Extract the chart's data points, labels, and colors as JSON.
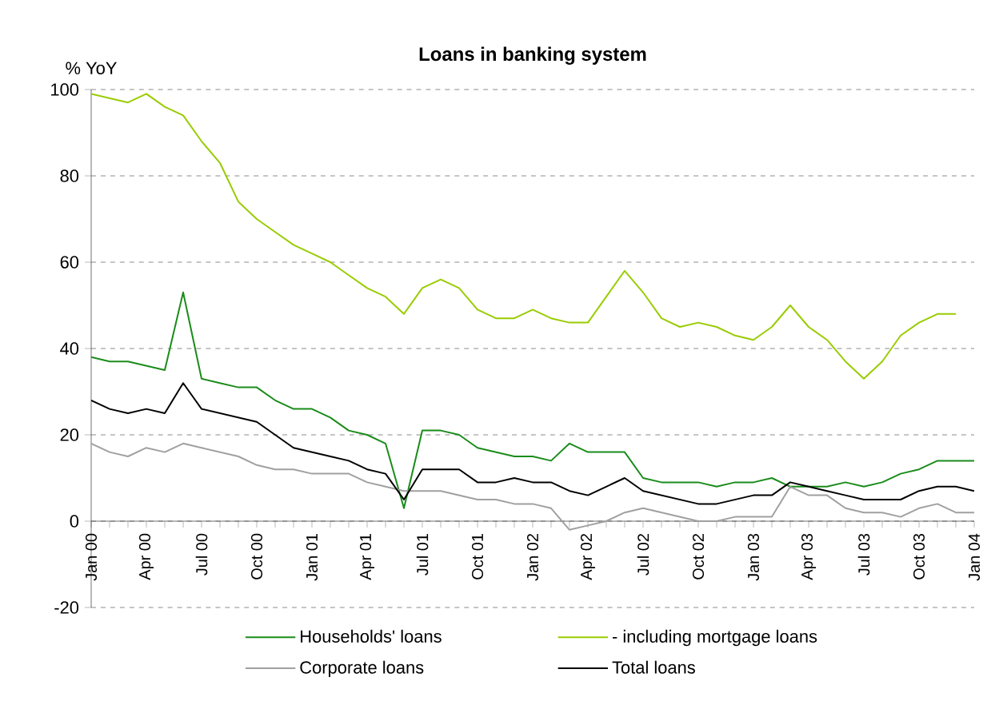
{
  "chart_data": {
    "type": "line",
    "title": "Loans in banking system",
    "ylabel": "% YoY",
    "x": [
      "2000-01",
      "2000-02",
      "2000-03",
      "2000-04",
      "2000-05",
      "2000-06",
      "2000-07",
      "2000-08",
      "2000-09",
      "2000-10",
      "2000-11",
      "2000-12",
      "2001-01",
      "2001-02",
      "2001-03",
      "2001-04",
      "2001-05",
      "2001-06",
      "2001-07",
      "2001-08",
      "2001-09",
      "2001-10",
      "2001-11",
      "2001-12",
      "2002-01",
      "2002-02",
      "2002-03",
      "2002-04",
      "2002-05",
      "2002-06",
      "2002-07",
      "2002-08",
      "2002-09",
      "2002-10",
      "2002-11",
      "2002-12",
      "2003-01",
      "2003-02",
      "2003-03",
      "2003-04",
      "2003-05",
      "2003-06",
      "2003-07",
      "2003-08",
      "2003-09",
      "2003-10",
      "2003-11",
      "2003-12",
      "2004-01"
    ],
    "series": [
      {
        "name": "Households' loans",
        "color": "#1a8c1a",
        "values": [
          38,
          37,
          37,
          36,
          35,
          53,
          33,
          32,
          31,
          31,
          28,
          26,
          26,
          24,
          21,
          20,
          18,
          3,
          21,
          21,
          20,
          17,
          16,
          15,
          15,
          14,
          18,
          16,
          16,
          16,
          10,
          9,
          9,
          9,
          8,
          9,
          9,
          10,
          8,
          8,
          8,
          9,
          8,
          9,
          11,
          12,
          14,
          14,
          14
        ]
      },
      {
        "name": "- including mortgage loans",
        "color": "#99cc00",
        "values": [
          99,
          98,
          97,
          99,
          96,
          94,
          88,
          83,
          74,
          70,
          67,
          64,
          62,
          60,
          57,
          54,
          52,
          48,
          54,
          56,
          54,
          49,
          47,
          47,
          49,
          47,
          46,
          46,
          52,
          58,
          53,
          47,
          45,
          46,
          45,
          43,
          42,
          45,
          50,
          45,
          42,
          37,
          33,
          37,
          43,
          46,
          48,
          48,
          null
        ]
      },
      {
        "name": "Corporate loans",
        "color": "#a0a0a0",
        "values": [
          18,
          16,
          15,
          17,
          16,
          18,
          17,
          16,
          15,
          13,
          12,
          12,
          11,
          11,
          11,
          9,
          8,
          7,
          7,
          7,
          6,
          5,
          5,
          4,
          4,
          3,
          -2,
          -1,
          0,
          2,
          3,
          2,
          1,
          0,
          0,
          1,
          1,
          1,
          8,
          6,
          6,
          3,
          2,
          2,
          1,
          3,
          4,
          2,
          2
        ]
      },
      {
        "name": "Total loans",
        "color": "#000000",
        "values": [
          28,
          26,
          25,
          26,
          25,
          32,
          26,
          25,
          24,
          23,
          20,
          17,
          16,
          15,
          14,
          12,
          11,
          5,
          12,
          12,
          12,
          9,
          9,
          10,
          9,
          9,
          7,
          6,
          8,
          10,
          7,
          6,
          5,
          4,
          4,
          5,
          6,
          6,
          9,
          8,
          7,
          6,
          5,
          5,
          5,
          7,
          8,
          8,
          7
        ]
      }
    ],
    "xlim": [
      "2000-01",
      "2004-01"
    ],
    "xticks": [
      {
        "value": "2000-01",
        "label": "Jan 00"
      },
      {
        "value": "2000-04",
        "label": "Apr 00"
      },
      {
        "value": "2000-07",
        "label": "Jul 00"
      },
      {
        "value": "2000-10",
        "label": "Oct 00"
      },
      {
        "value": "2001-01",
        "label": "Jan 01"
      },
      {
        "value": "2001-04",
        "label": "Apr 01"
      },
      {
        "value": "2001-07",
        "label": "Jul 01"
      },
      {
        "value": "2001-10",
        "label": "Oct 01"
      },
      {
        "value": "2002-01",
        "label": "Jan 02"
      },
      {
        "value": "2002-04",
        "label": "Apr 02"
      },
      {
        "value": "2002-07",
        "label": "Jul 02"
      },
      {
        "value": "2002-10",
        "label": "Oct 02"
      },
      {
        "value": "2003-01",
        "label": "Jan 03"
      },
      {
        "value": "2003-04",
        "label": "Apr 03"
      },
      {
        "value": "2003-07",
        "label": "Jul 03"
      },
      {
        "value": "2003-10",
        "label": "Oct 03"
      },
      {
        "value": "2004-01",
        "label": "Jan 04"
      }
    ],
    "ylim": [
      -20,
      100
    ],
    "yticks": [
      -20,
      0,
      20,
      40,
      60,
      80,
      100
    ],
    "grid": "y",
    "legend": "bottom",
    "line_style": "solid"
  }
}
